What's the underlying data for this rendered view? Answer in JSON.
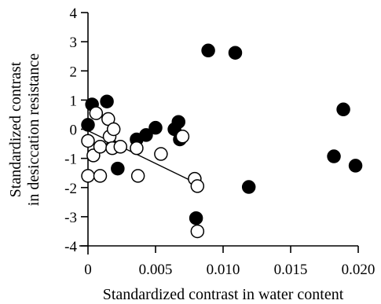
{
  "chart_data": {
    "type": "scatter",
    "title": "",
    "xlabel": "Standardized contrast in water content",
    "ylabel_lines": [
      "Standardized contrast",
      "in desiccation resistance"
    ],
    "xlim": [
      0,
      0.02
    ],
    "ylim": [
      -4,
      4
    ],
    "x_ticks": [
      0,
      0.005,
      0.01,
      0.015,
      0.02
    ],
    "x_tick_labels": [
      "0",
      "0.005",
      "0.010",
      "0.015",
      "0.020"
    ],
    "y_ticks": [
      4,
      3,
      2,
      1,
      0,
      -1,
      -2,
      -3,
      -4
    ],
    "y_tick_labels": [
      "4",
      "3",
      "2",
      "1",
      "0",
      "-1",
      "-2",
      "-3",
      "-4"
    ],
    "grid": false,
    "legend": "none",
    "series": [
      {
        "marker": "filled-circle",
        "color": "#000000",
        "points": [
          [
            0.0,
            0.15
          ],
          [
            0.0003,
            0.85
          ],
          [
            0.0014,
            0.95
          ],
          [
            0.0018,
            -0.6
          ],
          [
            0.0022,
            -1.35
          ],
          [
            0.0036,
            -0.35
          ],
          [
            0.0043,
            -0.2
          ],
          [
            0.005,
            0.05
          ],
          [
            0.0064,
            0.0
          ],
          [
            0.0067,
            0.25
          ],
          [
            0.0068,
            -0.35
          ],
          [
            0.008,
            -3.05
          ],
          [
            0.0089,
            2.7
          ],
          [
            0.0109,
            2.62
          ],
          [
            0.0119,
            -1.98
          ],
          [
            0.0182,
            -0.93
          ],
          [
            0.0189,
            0.68
          ],
          [
            0.0198,
            -1.25
          ]
        ]
      },
      {
        "marker": "open-circle",
        "color": "#000000",
        "points": [
          [
            0.0,
            -0.4
          ],
          [
            0.0,
            -1.6
          ],
          [
            0.0004,
            -0.9
          ],
          [
            0.0006,
            0.55
          ],
          [
            0.0009,
            -0.6
          ],
          [
            0.0009,
            -1.6
          ],
          [
            0.0015,
            0.35
          ],
          [
            0.0016,
            -0.25
          ],
          [
            0.0018,
            -0.65
          ],
          [
            0.0019,
            0.0
          ],
          [
            0.0024,
            -0.6
          ],
          [
            0.0036,
            -0.65
          ],
          [
            0.0037,
            -1.6
          ],
          [
            0.0054,
            -0.85
          ],
          [
            0.007,
            -0.25
          ],
          [
            0.0079,
            -1.7
          ],
          [
            0.0081,
            -1.95
          ],
          [
            0.0081,
            -3.5
          ]
        ]
      }
    ],
    "fit_line": {
      "x": [
        0.0,
        0.008
      ],
      "y": [
        -0.05,
        -1.85
      ]
    }
  }
}
